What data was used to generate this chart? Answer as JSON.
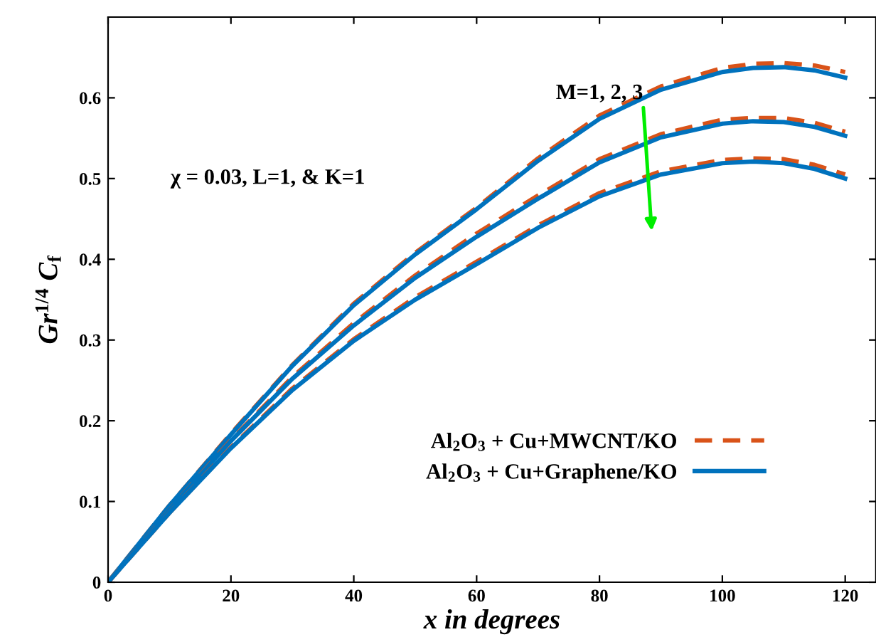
{
  "chart_data": {
    "type": "line",
    "xlabel": "x in degrees",
    "ylabel": "Gr$^{1/4}$ C$_{f}$",
    "x": [
      0,
      10,
      20,
      30,
      40,
      50,
      60,
      70,
      80,
      90,
      100,
      105,
      110,
      115,
      120
    ],
    "series": [
      {
        "name": "Al$_{2}$O$_{3}$ + Cu+MWCNT/KO",
        "color": "#d95319",
        "line_style": "dashed",
        "values": [
          0,
          0.095,
          0.184,
          0.269,
          0.345,
          0.408,
          0.464,
          0.525,
          0.578,
          0.614,
          0.637,
          0.642,
          0.643,
          0.64,
          0.632
        ]
      },
      {
        "name": "Al$_{2}$O$_{3}$ + Cu+Graphene/KO",
        "color": "#0072bd",
        "line_style": "solid",
        "values": [
          0,
          0.095,
          0.183,
          0.268,
          0.343,
          0.406,
          0.462,
          0.522,
          0.574,
          0.61,
          0.632,
          0.637,
          0.638,
          0.634,
          0.625
        ]
      },
      {
        "color": "#d95319",
        "line_style": "dashed",
        "values": [
          0,
          0.09,
          0.176,
          0.254,
          0.321,
          0.38,
          0.432,
          0.479,
          0.524,
          0.555,
          0.573,
          0.575,
          0.575,
          0.569,
          0.558
        ]
      },
      {
        "color": "#0072bd",
        "line_style": "solid",
        "values": [
          0,
          0.09,
          0.175,
          0.252,
          0.318,
          0.377,
          0.428,
          0.475,
          0.52,
          0.551,
          0.568,
          0.571,
          0.57,
          0.564,
          0.553
        ]
      },
      {
        "color": "#d95319",
        "line_style": "dashed",
        "values": [
          0,
          0.086,
          0.167,
          0.24,
          0.301,
          0.353,
          0.397,
          0.442,
          0.482,
          0.509,
          0.523,
          0.525,
          0.524,
          0.517,
          0.505
        ]
      },
      {
        "color": "#0072bd",
        "line_style": "solid",
        "values": [
          0,
          0.086,
          0.166,
          0.238,
          0.299,
          0.35,
          0.394,
          0.439,
          0.478,
          0.505,
          0.519,
          0.521,
          0.519,
          0.512,
          0.5
        ]
      }
    ],
    "xlim": [
      0,
      125
    ],
    "xticks": [
      0,
      20,
      40,
      60,
      80,
      100,
      120
    ],
    "ylim": [
      0,
      0.7
    ],
    "yticks": [
      0,
      0.1,
      0.2,
      0.3,
      0.4,
      0.5,
      0.6
    ],
    "annotations": [
      "M=1, 2, 3",
      "χ = 0.03, L=1, & K=1"
    ],
    "legend": "bottom right",
    "grid": false
  }
}
